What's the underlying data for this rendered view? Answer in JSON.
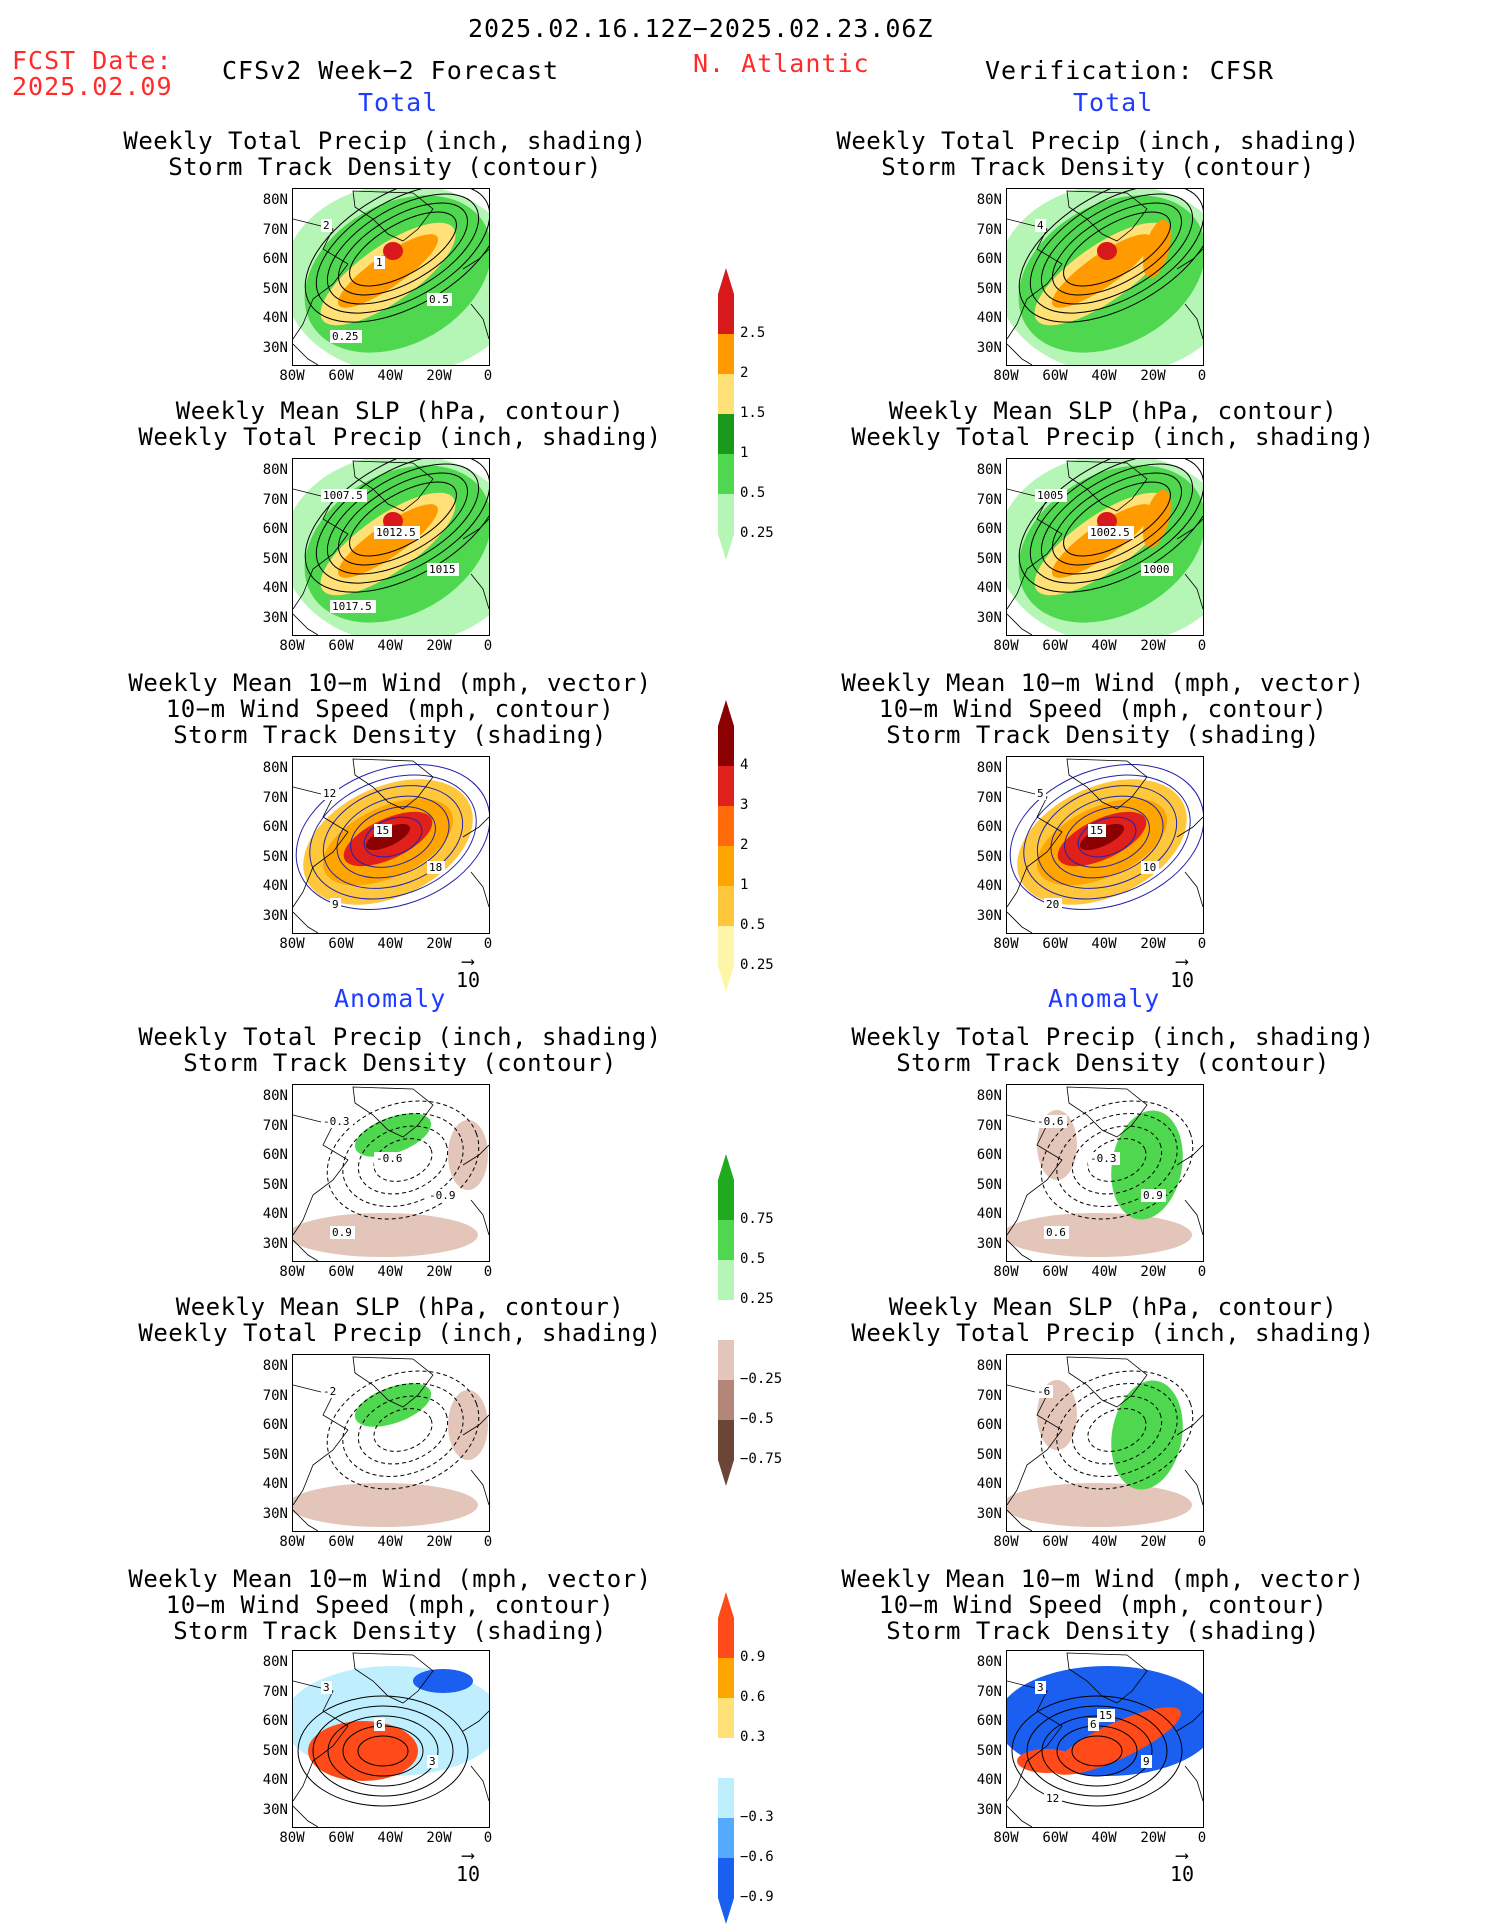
{
  "header": {
    "period": "2025.02.16.12Z−2025.02.23.06Z",
    "fcst_label": "FCST Date:",
    "fcst_date": "2025.02.09",
    "model": "CFSv2 Week−2 Forecast",
    "region": "N. Atlantic",
    "verification": "Verification: CFSR"
  },
  "sections": {
    "total": "Total",
    "anomaly": "Anomaly"
  },
  "titles": {
    "precip_track": [
      "Weekly Total Precip (inch, shading)",
      "Storm Track Density (contour)"
    ],
    "slp_precip": [
      "Weekly Mean SLP (hPa, contour)",
      "Weekly Total Precip (inch, shading)"
    ],
    "wind": [
      "Weekly Mean 10−m Wind (mph, vector)",
      "10−m Wind Speed (mph, contour)",
      "Storm Track Density (shading)"
    ]
  },
  "axes": {
    "lat": [
      "80N",
      "70N",
      "60N",
      "50N",
      "40N",
      "30N"
    ],
    "lon": [
      "80W",
      "60W",
      "40W",
      "20W",
      "0"
    ]
  },
  "vector_ref": "10",
  "colorbars": {
    "precip_total": {
      "labels": [
        "2.5",
        "2",
        "1.5",
        "1",
        "0.5",
        "0.25"
      ],
      "colors": [
        "#d7191c",
        "#ff9a00",
        "#ffe177",
        "#1a9a1a",
        "#4fd84f",
        "#b5f5b5"
      ]
    },
    "track_total": {
      "labels": [
        "4",
        "3",
        "2",
        "1",
        "0.5",
        "0.25"
      ],
      "colors": [
        "#8b0000",
        "#e0201a",
        "#ff6a0a",
        "#ffa500",
        "#ffc83c",
        "#fff5a8"
      ]
    },
    "precip_anom": {
      "labels": [
        "0.75",
        "0.5",
        "0.25",
        "−0.25",
        "−0.5",
        "−0.75"
      ],
      "colors": [
        "#1faa1f",
        "#4fd84f",
        "#b5f5b5",
        "#ffffff",
        "#e3c5b9",
        "#b4867a",
        "#6b4637"
      ]
    },
    "track_anom": {
      "labels": [
        "0.9",
        "0.6",
        "0.3",
        "−0.3",
        "−0.6",
        "−0.9"
      ],
      "colors": [
        "#ff4a1a",
        "#ffa500",
        "#ffe177",
        "#ffffff",
        "#bfefff",
        "#55aaff",
        "#1a5ff0"
      ]
    }
  },
  "panel_labels": {
    "fc_total_precip": [
      "2",
      "1",
      "0.5",
      "0.25"
    ],
    "vf_total_precip": [
      "4"
    ],
    "fc_total_slp": [
      "1007.5",
      "1012.5",
      "1015",
      "1017.5"
    ],
    "vf_total_slp": [
      "1005",
      "1002.5",
      "1000"
    ],
    "fc_total_wind": [
      "12",
      "15",
      "18",
      "9"
    ],
    "vf_total_wind": [
      "5",
      "15",
      "10",
      "20"
    ],
    "fc_anom_precip": [
      "-0.3",
      "-0.6",
      "-0.9",
      "0.9"
    ],
    "vf_anom_precip": [
      "-0.6",
      "-0.3",
      "0.9",
      "0.6"
    ],
    "fc_anom_slp": [
      "-2"
    ],
    "vf_anom_slp": [
      "-6"
    ],
    "fc_anom_wind": [
      "3",
      "6",
      "3"
    ],
    "vf_anom_wind": [
      "3",
      "6",
      "9",
      "12",
      "15"
    ]
  }
}
